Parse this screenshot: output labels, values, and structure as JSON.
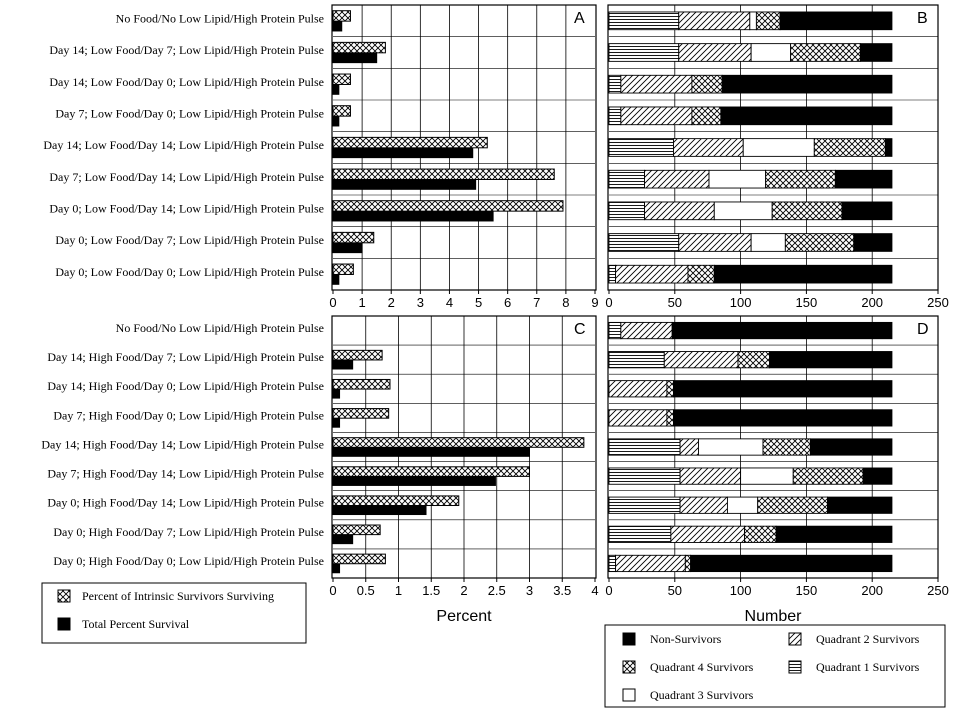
{
  "colors": {
    "ink": "#000000",
    "paper": "#ffffff"
  },
  "chart_data": [
    {
      "panel": "A",
      "type": "bar",
      "orientation": "horizontal",
      "categories": [
        "No Food/No Low Lipid/High Protein Pulse",
        "Day 14; Low Food/Day 7; Low Lipid/High Protein Pulse",
        "Day 14; Low Food/Day 0; Low Lipid/High Protein Pulse",
        "Day 7; Low Food/Day 0; Low Lipid/High Protein Pulse",
        "Day 14; Low Food/Day 14; Low Lipid/High Protein Pulse",
        "Day 7; Low Food/Day 14; Low Lipid/High Protein Pulse",
        "Day 0; Low Food/Day 14; Low Lipid/High Protein Pulse",
        "Day 0; Low Food/Day 7; Low Lipid/High Protein Pulse",
        "Day 0; Low Food/Day 0; Low Lipid/High Protein Pulse"
      ],
      "series": [
        {
          "name": "Percent of Intrinsic Survivors Surviving",
          "values": [
            0.6,
            1.8,
            0.6,
            0.6,
            5.3,
            7.6,
            7.9,
            1.4,
            0.7
          ]
        },
        {
          "name": "Total Percent Survival",
          "values": [
            0.3,
            1.5,
            0.2,
            0.2,
            4.8,
            4.9,
            5.5,
            1.0,
            0.2
          ]
        }
      ],
      "xlim": [
        0,
        9
      ],
      "xticks": [
        "0",
        "1",
        "2",
        "3",
        "4",
        "5",
        "6",
        "7",
        "8",
        "9"
      ]
    },
    {
      "panel": "B",
      "type": "bar",
      "orientation": "horizontal",
      "stacked": true,
      "series_order": [
        "Quadrant 1 Survivors",
        "Quadrant 2 Survivors",
        "Quadrant 3 Survivors",
        "Quadrant 4 Survivors",
        "Non-Survivors"
      ],
      "values": [
        [
          53,
          54,
          5,
          18,
          85
        ],
        [
          53,
          55,
          30,
          53,
          24
        ],
        [
          9,
          54,
          0,
          23,
          129
        ],
        [
          9,
          54,
          0,
          22,
          130
        ],
        [
          49,
          53,
          54,
          54,
          5
        ],
        [
          27,
          49,
          43,
          53,
          43
        ],
        [
          27,
          53,
          44,
          53,
          38
        ],
        [
          53,
          55,
          26,
          52,
          29
        ],
        [
          5,
          55,
          0,
          20,
          135
        ]
      ],
      "xlim": [
        0,
        250
      ],
      "xticks": [
        "0",
        "50",
        "100",
        "150",
        "200",
        "250"
      ],
      "xlabel": "Number"
    },
    {
      "panel": "C",
      "type": "bar",
      "orientation": "horizontal",
      "categories": [
        "No Food/No Low Lipid/High Protein Pulse",
        "Day 14; High Food/Day 7; Low Lipid/High Protein Pulse",
        "Day 14; High Food/Day 0; Low Lipid/High Protein Pulse",
        "Day 7; High Food/Day 0; Low Lipid/High Protein Pulse",
        "Day 14; High Food/Day 14; Low Lipid/High Protein Pulse",
        "Day 7; High Food/Day 14; Low Lipid/High Protein Pulse",
        "Day 0; High Food/Day 14; Low Lipid/High Protein Pulse",
        "Day 0; High Food/Day 7; Low Lipid/High Protein Pulse",
        "Day 0; High Food/Day 0; Low Lipid/High Protein Pulse"
      ],
      "series": [
        {
          "name": "Percent of Intrinsic Survivors Surviving",
          "values": [
            0,
            0.75,
            0.87,
            0.85,
            3.83,
            3.0,
            1.92,
            0.72,
            0.8
          ]
        },
        {
          "name": "Total Percent Survival",
          "values": [
            0,
            0.3,
            0.1,
            0.1,
            3.0,
            2.48,
            1.42,
            0.3,
            0.1
          ]
        }
      ],
      "xlim": [
        0,
        4
      ],
      "xticks": [
        "0",
        "0.5",
        "1",
        "1.5",
        "2",
        "2.5",
        "3",
        "3.5",
        "4"
      ],
      "xlabel": "Percent"
    },
    {
      "panel": "D",
      "type": "bar",
      "orientation": "horizontal",
      "stacked": true,
      "series_order": [
        "Quadrant 1 Survivors",
        "Quadrant 2 Survivors",
        "Quadrant 3 Survivors",
        "Quadrant 4 Survivors",
        "Non-Survivors"
      ],
      "values": [
        [
          9,
          39,
          0,
          0,
          167
        ],
        [
          42,
          56,
          0,
          24,
          93
        ],
        [
          0,
          44,
          0,
          5,
          166
        ],
        [
          0,
          44,
          0,
          5,
          166
        ],
        [
          54,
          14,
          49,
          36,
          62
        ],
        [
          54,
          46,
          40,
          53,
          22
        ],
        [
          54,
          36,
          23,
          53,
          49
        ],
        [
          47,
          56,
          0,
          24,
          88
        ],
        [
          5,
          53,
          0,
          4,
          153
        ]
      ],
      "xlim": [
        0,
        250
      ],
      "xticks": [
        "0",
        "50",
        "100",
        "150",
        "200",
        "250"
      ],
      "xlabel": "Number"
    }
  ],
  "legend_left": {
    "items": [
      {
        "label": "Percent of Intrinsic Survivors Surviving",
        "pattern": "crosshatch"
      },
      {
        "label": "Total Percent Survival",
        "pattern": "solid"
      }
    ]
  },
  "legend_right": {
    "items": [
      {
        "label": "Non-Survivors",
        "pattern": "solid"
      },
      {
        "label": "Quadrant 2 Survivors",
        "pattern": "diagonal"
      },
      {
        "label": "Quadrant 4 Survivors",
        "pattern": "crosshatch"
      },
      {
        "label": "Quadrant 1 Survivors",
        "pattern": "horizontal"
      },
      {
        "label": "Quadrant 3 Survivors",
        "pattern": "empty"
      }
    ]
  }
}
